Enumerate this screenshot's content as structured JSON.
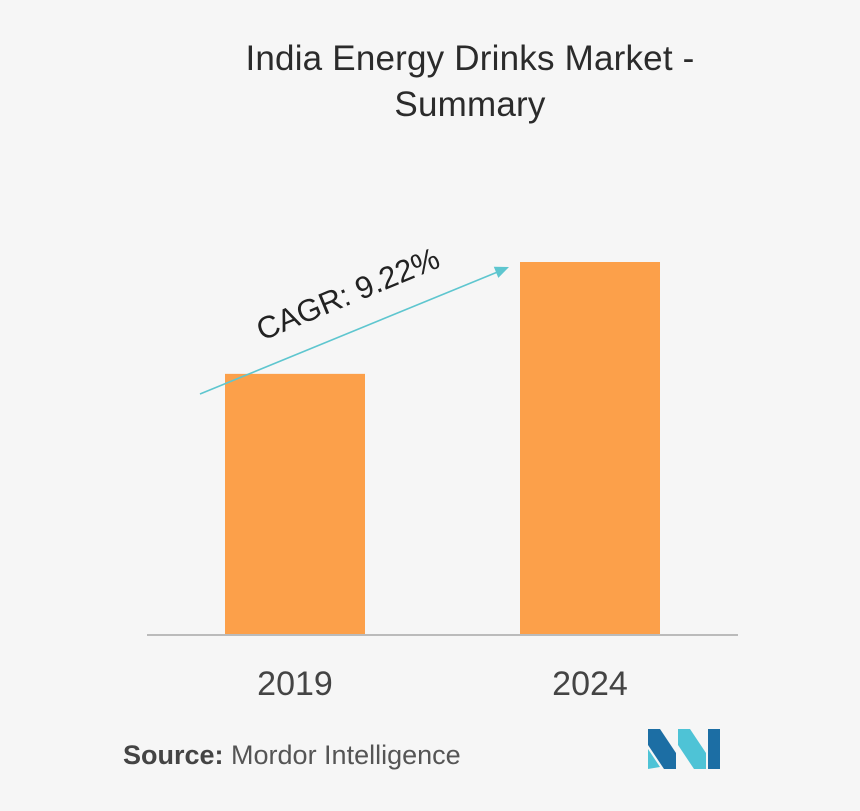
{
  "title": {
    "line1": "India Energy Drinks Market -",
    "line2": "Summary"
  },
  "chart_data": {
    "type": "bar",
    "title": "India Energy Drinks Market - Summary",
    "categories": [
      "2019",
      "2024"
    ],
    "values": [
      100,
      143
    ],
    "ylim": [
      0,
      160
    ],
    "xlabel": "",
    "ylabel": "",
    "grid": false,
    "annotation": "CAGR: 9.22%",
    "bar_color": "#fca04a",
    "arrow_color": "#5ec6cf",
    "axis_color": "#bbbbbb"
  },
  "source": {
    "label": "Source:",
    "text": " Mordor Intelligence"
  },
  "logo": {
    "icon": "mordor-intelligence-logo",
    "color_dark": "#1c6ea4",
    "color_light": "#4ec3d6"
  }
}
